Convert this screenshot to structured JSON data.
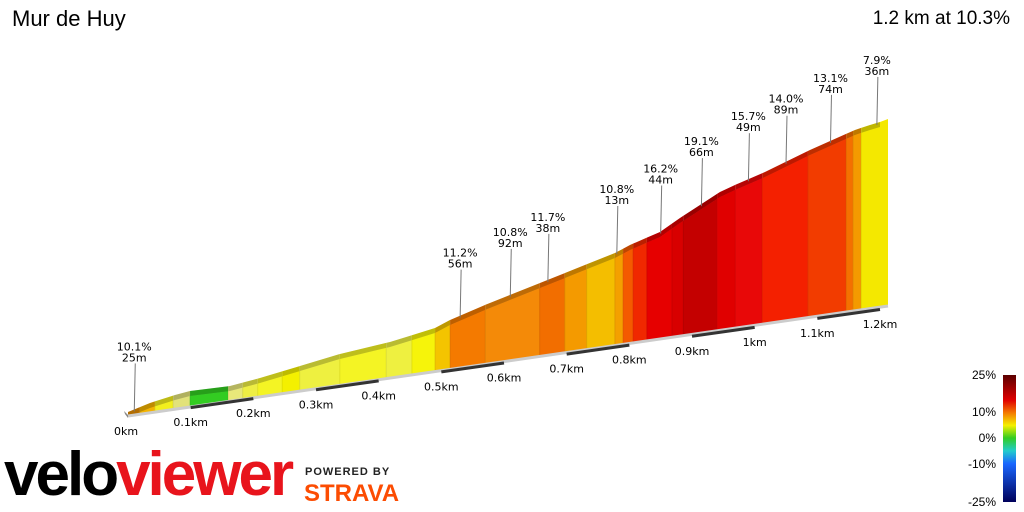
{
  "header": {
    "title": "Mur de Huy",
    "summary": "1.2 km at 10.3%"
  },
  "chart_data": {
    "type": "area",
    "xlabel": "",
    "ylabel": "",
    "xlim": [
      0,
      1.2
    ],
    "x_ticks": [
      {
        "km": 0,
        "label": "0km"
      },
      {
        "km": 0.1,
        "label": "0.1km"
      },
      {
        "km": 0.2,
        "label": "0.2km"
      },
      {
        "km": 0.3,
        "label": "0.3km"
      },
      {
        "km": 0.4,
        "label": "0.4km"
      },
      {
        "km": 0.5,
        "label": "0.5km"
      },
      {
        "km": 0.6,
        "label": "0.6km"
      },
      {
        "km": 0.7,
        "label": "0.7km"
      },
      {
        "km": 0.8,
        "label": "0.8km"
      },
      {
        "km": 0.9,
        "label": "0.9km"
      },
      {
        "km": 1.0,
        "label": "1km"
      },
      {
        "km": 1.1,
        "label": "1.1km"
      },
      {
        "km": 1.2,
        "label": "1.2km"
      }
    ],
    "segments": [
      {
        "from": 0,
        "to": 0.019,
        "color": "#e58c00"
      },
      {
        "from": 0.019,
        "to": 0.043,
        "color": "#f4b400"
      },
      {
        "from": 0.043,
        "to": 0.072,
        "color": "#f2ef1e"
      },
      {
        "from": 0.072,
        "to": 0.099,
        "color": "#e2e27a"
      },
      {
        "from": 0.099,
        "to": 0.16,
        "color": "#33cc22"
      },
      {
        "from": 0.16,
        "to": 0.183,
        "color": "#e8e87a"
      },
      {
        "from": 0.183,
        "to": 0.207,
        "color": "#eeee44"
      },
      {
        "from": 0.207,
        "to": 0.246,
        "color": "#f4f424"
      },
      {
        "from": 0.246,
        "to": 0.274,
        "color": "#f4f000"
      },
      {
        "from": 0.274,
        "to": 0.338,
        "color": "#eef040"
      },
      {
        "from": 0.338,
        "to": 0.412,
        "color": "#f4f424"
      },
      {
        "from": 0.412,
        "to": 0.453,
        "color": "#eef040"
      },
      {
        "from": 0.453,
        "to": 0.49,
        "color": "#f6f40a"
      },
      {
        "from": 0.49,
        "to": 0.514,
        "color": "#f4c400"
      },
      {
        "from": 0.514,
        "to": 0.57,
        "color": "#f47a00"
      },
      {
        "from": 0.57,
        "to": 0.657,
        "color": "#f48a08"
      },
      {
        "from": 0.657,
        "to": 0.697,
        "color": "#f26e00"
      },
      {
        "from": 0.697,
        "to": 0.732,
        "color": "#f49a00"
      },
      {
        "from": 0.732,
        "to": 0.777,
        "color": "#f4be00"
      },
      {
        "from": 0.777,
        "to": 0.79,
        "color": "#f4a000"
      },
      {
        "from": 0.79,
        "to": 0.806,
        "color": "#f45a00"
      },
      {
        "from": 0.806,
        "to": 0.828,
        "color": "#f02800"
      },
      {
        "from": 0.828,
        "to": 0.868,
        "color": "#e60000"
      },
      {
        "from": 0.868,
        "to": 0.886,
        "color": "#d80000"
      },
      {
        "from": 0.886,
        "to": 0.94,
        "color": "#c40000"
      },
      {
        "from": 0.94,
        "to": 0.969,
        "color": "#e00000"
      },
      {
        "from": 0.969,
        "to": 1.012,
        "color": "#e80808"
      },
      {
        "from": 1.012,
        "to": 1.085,
        "color": "#f42000"
      },
      {
        "from": 1.085,
        "to": 1.146,
        "color": "#f23c00"
      },
      {
        "from": 1.146,
        "to": 1.157,
        "color": "#f47000"
      },
      {
        "from": 1.157,
        "to": 1.17,
        "color": "#f49a00"
      },
      {
        "from": 1.17,
        "to": 1.2,
        "color": "#f4e800"
      }
    ],
    "annotations": [
      {
        "km": 0.01,
        "grade": "10.1%",
        "length": "25m"
      },
      {
        "km": 0.53,
        "grade": "11.2%",
        "length": "56m"
      },
      {
        "km": 0.61,
        "grade": "10.8%",
        "length": "92m"
      },
      {
        "km": 0.67,
        "grade": "11.7%",
        "length": "38m"
      },
      {
        "km": 0.78,
        "grade": "10.8%",
        "length": "13m"
      },
      {
        "km": 0.85,
        "grade": "16.2%",
        "length": "44m"
      },
      {
        "km": 0.915,
        "grade": "19.1%",
        "length": "66m"
      },
      {
        "km": 0.99,
        "grade": "15.7%",
        "length": "49m"
      },
      {
        "km": 1.05,
        "grade": "14.0%",
        "length": "89m"
      },
      {
        "km": 1.121,
        "grade": "13.1%",
        "length": "74m"
      },
      {
        "km": 1.195,
        "grade": "7.9%",
        "length": "36m"
      }
    ],
    "legend": {
      "labels": [
        "25%",
        "10%",
        "0%",
        "-10%",
        "-25%"
      ],
      "stops": [
        {
          "grade": 25,
          "color": "#5a0000"
        },
        {
          "grade": 15,
          "color": "#e00000"
        },
        {
          "grade": 10,
          "color": "#f47a00"
        },
        {
          "grade": 5,
          "color": "#f4f000"
        },
        {
          "grade": 0,
          "color": "#33cc22"
        },
        {
          "grade": -5,
          "color": "#22cccc"
        },
        {
          "grade": -10,
          "color": "#1a66ff"
        },
        {
          "grade": -25,
          "color": "#00005a"
        }
      ]
    }
  },
  "branding": {
    "logo_part1": "velo",
    "logo_part2": "viewer",
    "powered_by": "POWERED BY",
    "strava": "STRAVA",
    "strava_color": "#fc4c02"
  }
}
